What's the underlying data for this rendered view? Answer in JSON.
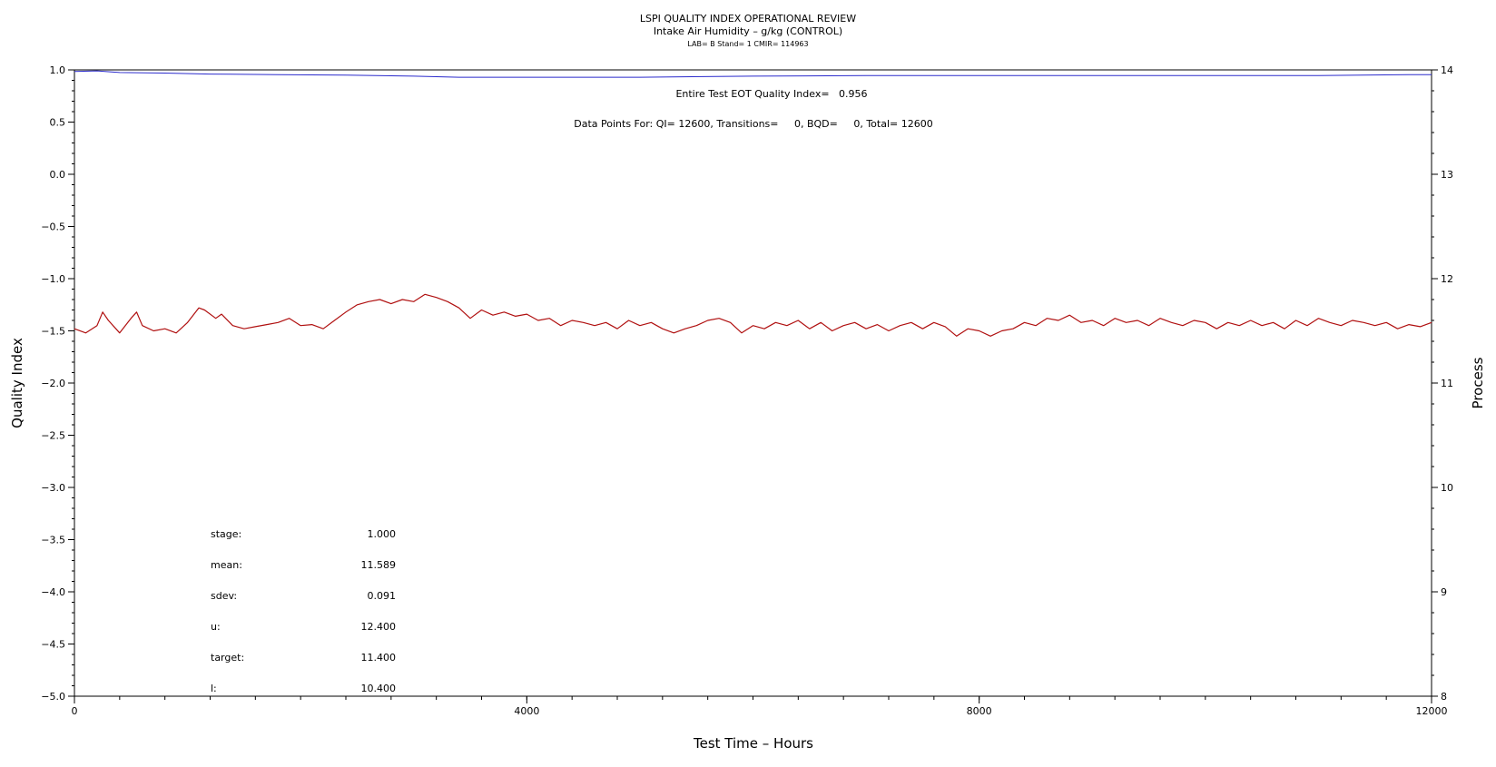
{
  "chart_data": {
    "type": "line",
    "title": "LSPI QUALITY INDEX OPERATIONAL REVIEW",
    "subtitle": "Intake Air Humidity – g/kg (CONTROL)",
    "info_line": "LAB= B Stand= 1 CMIR= 114963",
    "xlabel": "Test Time – Hours",
    "ylabel_left": "Quality Index",
    "ylabel_right": "Process",
    "xlim": [
      0,
      12000
    ],
    "ylim_left": [
      -5.0,
      1.0
    ],
    "ylim_right": [
      8,
      14
    ],
    "x_ticks": [
      "0",
      "4000",
      "8000",
      "12000"
    ],
    "y_left_ticks": [
      "1.0",
      "0.5",
      "0.0",
      "−0.5",
      "−1.0",
      "−1.5",
      "−2.0",
      "−2.5",
      "−3.0",
      "−3.5",
      "−4.0",
      "−4.5",
      "−5.0"
    ],
    "y_right_ticks": [
      "14",
      "13",
      "12",
      "11",
      "10",
      "9",
      "8"
    ],
    "annotations": {
      "eot_quality_index": "Entire Test EOT Quality Index=   0.956",
      "data_points": "Data Points For: QI= 12600, Transitions=     0, BQD=     0, Total= 12600"
    },
    "stats": [
      {
        "label": "stage:",
        "value": "1.000"
      },
      {
        "label": "mean:",
        "value": "11.589"
      },
      {
        "label": "sdev:",
        "value": "0.091"
      },
      {
        "label": "u:",
        "value": "12.400"
      },
      {
        "label": "target:",
        "value": "11.400"
      },
      {
        "label": "l:",
        "value": "10.400"
      }
    ],
    "series": [
      {
        "axis": "left",
        "color": "#2b2bcc",
        "x": [
          0,
          200,
          400,
          800,
          1200,
          1800,
          2400,
          3000,
          3400,
          4000,
          5000,
          6000,
          7000,
          8000,
          9000,
          10000,
          11000,
          11800,
          12000
        ],
        "values": [
          0.985,
          0.99,
          0.975,
          0.97,
          0.96,
          0.955,
          0.95,
          0.94,
          0.93,
          0.93,
          0.93,
          0.94,
          0.945,
          0.945,
          0.945,
          0.945,
          0.945,
          0.955,
          0.955
        ]
      },
      {
        "axis": "right",
        "color": "#b01010",
        "x": [
          0,
          100,
          200,
          250,
          300,
          400,
          500,
          550,
          600,
          700,
          800,
          900,
          1000,
          1100,
          1150,
          1250,
          1300,
          1400,
          1500,
          1600,
          1700,
          1800,
          1900,
          2000,
          2100,
          2200,
          2300,
          2400,
          2500,
          2600,
          2700,
          2800,
          2900,
          3000,
          3100,
          3200,
          3300,
          3400,
          3500,
          3600,
          3700,
          3800,
          3900,
          4000,
          4100,
          4200,
          4300,
          4400,
          4500,
          4600,
          4700,
          4800,
          4900,
          5000,
          5100,
          5200,
          5300,
          5400,
          5500,
          5600,
          5700,
          5800,
          5900,
          6000,
          6100,
          6200,
          6300,
          6400,
          6500,
          6600,
          6700,
          6800,
          6900,
          7000,
          7100,
          7200,
          7300,
          7400,
          7500,
          7600,
          7700,
          7800,
          7900,
          8000,
          8100,
          8200,
          8300,
          8400,
          8500,
          8600,
          8700,
          8800,
          8900,
          9000,
          9100,
          9200,
          9300,
          9400,
          9500,
          9600,
          9700,
          9800,
          9900,
          10000,
          10100,
          10200,
          10300,
          10400,
          10500,
          10600,
          10700,
          10800,
          10900,
          11000,
          11100,
          11200,
          11300,
          11400,
          11500,
          11600,
          11700,
          11800,
          11900,
          12000
        ],
        "values": [
          11.52,
          11.48,
          11.55,
          11.68,
          11.6,
          11.48,
          11.62,
          11.68,
          11.55,
          11.5,
          11.52,
          11.48,
          11.58,
          11.72,
          11.7,
          11.62,
          11.66,
          11.55,
          11.52,
          11.54,
          11.56,
          11.58,
          11.62,
          11.55,
          11.56,
          11.52,
          11.6,
          11.68,
          11.75,
          11.78,
          11.8,
          11.76,
          11.8,
          11.78,
          11.85,
          11.82,
          11.78,
          11.72,
          11.62,
          11.7,
          11.65,
          11.68,
          11.64,
          11.66,
          11.6,
          11.62,
          11.55,
          11.6,
          11.58,
          11.55,
          11.58,
          11.52,
          11.6,
          11.55,
          11.58,
          11.52,
          11.48,
          11.52,
          11.55,
          11.6,
          11.62,
          11.58,
          11.48,
          11.55,
          11.52,
          11.58,
          11.55,
          11.6,
          11.52,
          11.58,
          11.5,
          11.55,
          11.58,
          11.52,
          11.56,
          11.5,
          11.55,
          11.58,
          11.52,
          11.58,
          11.54,
          11.45,
          11.52,
          11.5,
          11.45,
          11.5,
          11.52,
          11.58,
          11.55,
          11.62,
          11.6,
          11.65,
          11.58,
          11.6,
          11.55,
          11.62,
          11.58,
          11.6,
          11.55,
          11.62,
          11.58,
          11.55,
          11.6,
          11.58,
          11.52,
          11.58,
          11.55,
          11.6,
          11.55,
          11.58,
          11.52,
          11.6,
          11.55,
          11.62,
          11.58,
          11.55,
          11.6,
          11.58,
          11.55,
          11.58,
          11.52,
          11.56,
          11.54,
          11.58
        ]
      }
    ]
  }
}
